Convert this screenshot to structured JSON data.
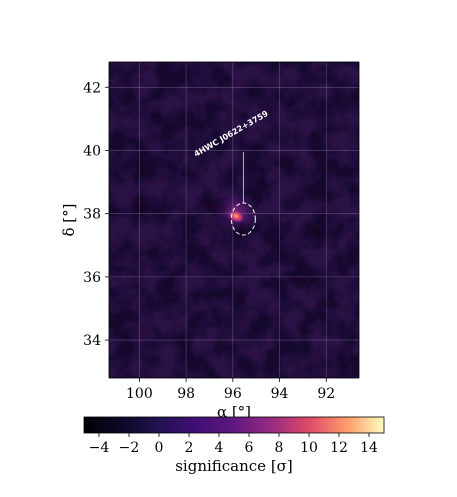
{
  "chart_data": {
    "type": "heatmap",
    "title": "",
    "xlabel": "α [°]",
    "ylabel": "δ [°]",
    "xlim": [
      101.3,
      90.6
    ],
    "ylim": [
      32.8,
      42.8
    ],
    "x_ticks": [
      100,
      98,
      96,
      94,
      92
    ],
    "x_tick_labels": [
      "100",
      "98",
      "96",
      "94",
      "92"
    ],
    "y_ticks": [
      34,
      36,
      38,
      40,
      42
    ],
    "y_tick_labels": [
      "34",
      "36",
      "38",
      "40",
      "42"
    ],
    "grid": true,
    "colormap": "magma",
    "colorbar": {
      "label": "significance [σ]",
      "range": [
        -5,
        15
      ],
      "ticks": [
        -4,
        -2,
        0,
        2,
        4,
        6,
        8,
        10,
        12,
        14
      ],
      "tick_labels": [
        "−4",
        "−2",
        "0",
        "2",
        "4",
        "6",
        "8",
        "10",
        "12",
        "14"
      ]
    },
    "sources": [
      {
        "name": "4HWC J0622+3759",
        "ra": 95.55,
        "dec": 37.83,
        "peak_significance": 9.5
      }
    ],
    "background_significance": [
      -2,
      3
    ]
  },
  "colors": {
    "grid": "#8a7aa8",
    "marker": "#ffffff"
  }
}
